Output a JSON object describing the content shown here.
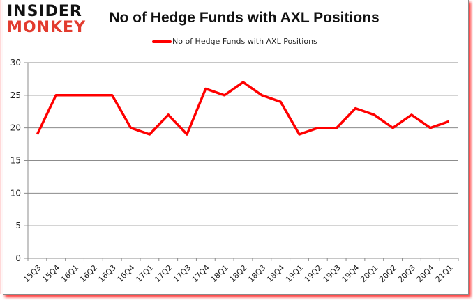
{
  "brand": {
    "line1": "INSIDER",
    "line2": "MONKEY"
  },
  "chart_data": {
    "type": "line",
    "title": "No of Hedge Funds with AXL Positions",
    "xlabel": "",
    "ylabel": "",
    "ylim": [
      0,
      30
    ],
    "yticks": [
      0,
      5,
      10,
      15,
      20,
      25,
      30
    ],
    "grid": true,
    "legend_position": "top",
    "categories": [
      "15Q3",
      "15Q4",
      "16Q1",
      "16Q2",
      "16Q3",
      "16Q4",
      "17Q1",
      "17Q2",
      "17Q3",
      "17Q4",
      "18Q1",
      "18Q2",
      "18Q3",
      "18Q4",
      "19Q1",
      "19Q2",
      "19Q3",
      "19Q4",
      "20Q1",
      "20Q2",
      "20Q3",
      "20Q4",
      "21Q1"
    ],
    "series": [
      {
        "name": "No of Hedge Funds with AXL Positions",
        "color": "#ff0000",
        "values": [
          19,
          25,
          25,
          25,
          25,
          20,
          19,
          22,
          19,
          26,
          25,
          27,
          25,
          24,
          19,
          20,
          20,
          23,
          22,
          20,
          22,
          20,
          21
        ]
      }
    ]
  }
}
